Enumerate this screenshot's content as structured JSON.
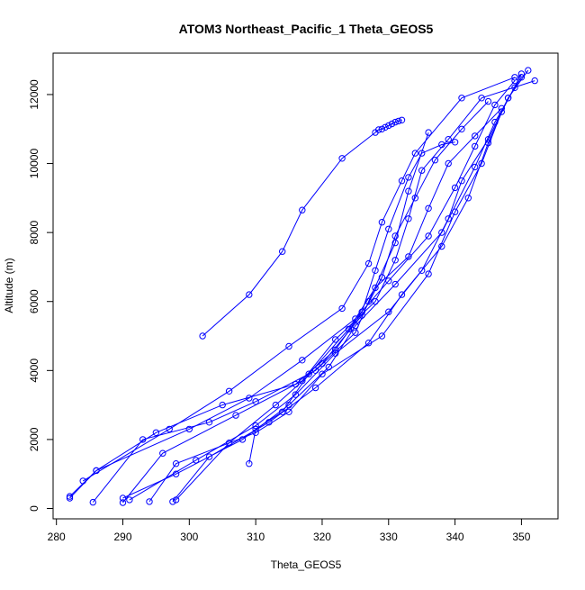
{
  "chart_data": {
    "type": "scatter",
    "title": "ATOM3 Northeast_Pacific_1 Theta_GEOS5",
    "xlabel": "Theta_GEOS5",
    "ylabel": "Altitude (m)",
    "xlim": [
      279.5,
      355.5
    ],
    "ylim": [
      -300,
      13200
    ],
    "xticks": [
      280,
      290,
      300,
      310,
      320,
      330,
      340,
      350
    ],
    "yticks": [
      0,
      2000,
      4000,
      6000,
      8000,
      10000,
      12000
    ],
    "grid": false,
    "color": "#0000ff",
    "series": [
      {
        "points": [
          [
            302,
            5000
          ],
          [
            309,
            6200
          ],
          [
            314,
            7450
          ],
          [
            317,
            8650
          ],
          [
            323,
            10150
          ],
          [
            328,
            10900
          ],
          [
            328.5,
            10980
          ],
          [
            329,
            11000
          ],
          [
            329.5,
            11050
          ],
          [
            330,
            11100
          ],
          [
            330.5,
            11150
          ],
          [
            331,
            11200
          ],
          [
            331.5,
            11230
          ],
          [
            332,
            11260
          ]
        ]
      },
      {
        "points": [
          [
            282,
            300
          ],
          [
            286,
            1100
          ],
          [
            295,
            2200
          ],
          [
            305,
            3000
          ],
          [
            316,
            3600
          ],
          [
            322,
            4600
          ],
          [
            326,
            5700
          ],
          [
            328,
            6900
          ],
          [
            330,
            8100
          ],
          [
            333,
            9600
          ],
          [
            335,
            10300
          ],
          [
            338,
            10550
          ],
          [
            340,
            10620
          ]
        ]
      },
      {
        "points": [
          [
            285.5,
            180
          ],
          [
            293,
            2000
          ],
          [
            303,
            2500
          ],
          [
            310,
            3100
          ],
          [
            319,
            4000
          ],
          [
            325,
            5100
          ],
          [
            327,
            6000
          ],
          [
            331,
            7700
          ],
          [
            333,
            9200
          ],
          [
            336,
            10900
          ]
        ]
      },
      {
        "points": [
          [
            290,
            300
          ],
          [
            298,
            1000
          ],
          [
            308,
            2000
          ],
          [
            315,
            3000
          ],
          [
            321,
            4100
          ],
          [
            325,
            5300
          ],
          [
            331,
            6500
          ],
          [
            338,
            8000
          ],
          [
            343,
            9900
          ],
          [
            346,
            11200
          ],
          [
            349,
            12200
          ],
          [
            350,
            12500
          ]
        ]
      },
      {
        "points": [
          [
            294,
            200
          ],
          [
            298,
            1300
          ],
          [
            310,
            2200
          ],
          [
            315,
            2800
          ],
          [
            320,
            3900
          ],
          [
            329,
            5000
          ],
          [
            336,
            6800
          ],
          [
            340,
            8600
          ],
          [
            344,
            10000
          ],
          [
            347,
            11500
          ],
          [
            350,
            12600
          ]
        ]
      },
      {
        "points": [
          [
            297.5,
            200
          ],
          [
            303,
            1500
          ],
          [
            312,
            2500
          ],
          [
            319,
            3500
          ],
          [
            327,
            4800
          ],
          [
            332,
            6200
          ],
          [
            338,
            7600
          ],
          [
            342,
            9000
          ],
          [
            345,
            10600
          ],
          [
            348,
            11900
          ],
          [
            351,
            12700
          ]
        ]
      },
      {
        "points": [
          [
            282,
            350
          ],
          [
            286,
            1100
          ],
          [
            300,
            2300
          ],
          [
            309,
            3200
          ],
          [
            317,
            4300
          ],
          [
            325,
            5500
          ],
          [
            330,
            6600
          ],
          [
            336,
            7900
          ],
          [
            340,
            9300
          ],
          [
            343,
            10500
          ],
          [
            346,
            11700
          ],
          [
            349,
            12400
          ]
        ]
      },
      {
        "points": [
          [
            309,
            1300
          ],
          [
            310,
            2300
          ],
          [
            314,
            2800
          ],
          [
            318,
            3900
          ],
          [
            324,
            5200
          ],
          [
            328,
            6400
          ],
          [
            333,
            7300
          ],
          [
            336,
            8700
          ],
          [
            339,
            10000
          ],
          [
            343,
            10800
          ],
          [
            347,
            11600
          ]
        ]
      },
      {
        "points": [
          [
            291,
            250
          ],
          [
            301,
            1400
          ],
          [
            310,
            2400
          ],
          [
            316,
            3300
          ],
          [
            322,
            4500
          ],
          [
            330,
            5700
          ],
          [
            335,
            6900
          ],
          [
            339,
            8400
          ],
          [
            341,
            9500
          ],
          [
            345,
            10700
          ],
          [
            348,
            11900
          ]
        ]
      },
      {
        "points": [
          [
            298,
            250
          ],
          [
            306,
            1900
          ],
          [
            313,
            3000
          ],
          [
            320,
            4200
          ],
          [
            326,
            5600
          ],
          [
            329,
            6700
          ],
          [
            331,
            7900
          ],
          [
            334,
            9000
          ],
          [
            337,
            10100
          ],
          [
            341,
            11000
          ],
          [
            345,
            11800
          ]
        ]
      },
      {
        "points": [
          [
            290,
            170
          ],
          [
            296,
            1600
          ],
          [
            307,
            2700
          ],
          [
            317,
            3700
          ],
          [
            322,
            4900
          ],
          [
            328,
            6000
          ],
          [
            331,
            7200
          ],
          [
            333,
            8400
          ],
          [
            335,
            9800
          ],
          [
            339,
            10700
          ],
          [
            344,
            11900
          ],
          [
            352,
            12400
          ]
        ]
      },
      {
        "points": [
          [
            284,
            800
          ],
          [
            297,
            2300
          ],
          [
            306,
            3400
          ],
          [
            315,
            4700
          ],
          [
            323,
            5800
          ],
          [
            327,
            7100
          ],
          [
            329,
            8300
          ],
          [
            332,
            9500
          ],
          [
            334,
            10300
          ],
          [
            341,
            11900
          ],
          [
            349,
            12500
          ]
        ]
      }
    ]
  }
}
